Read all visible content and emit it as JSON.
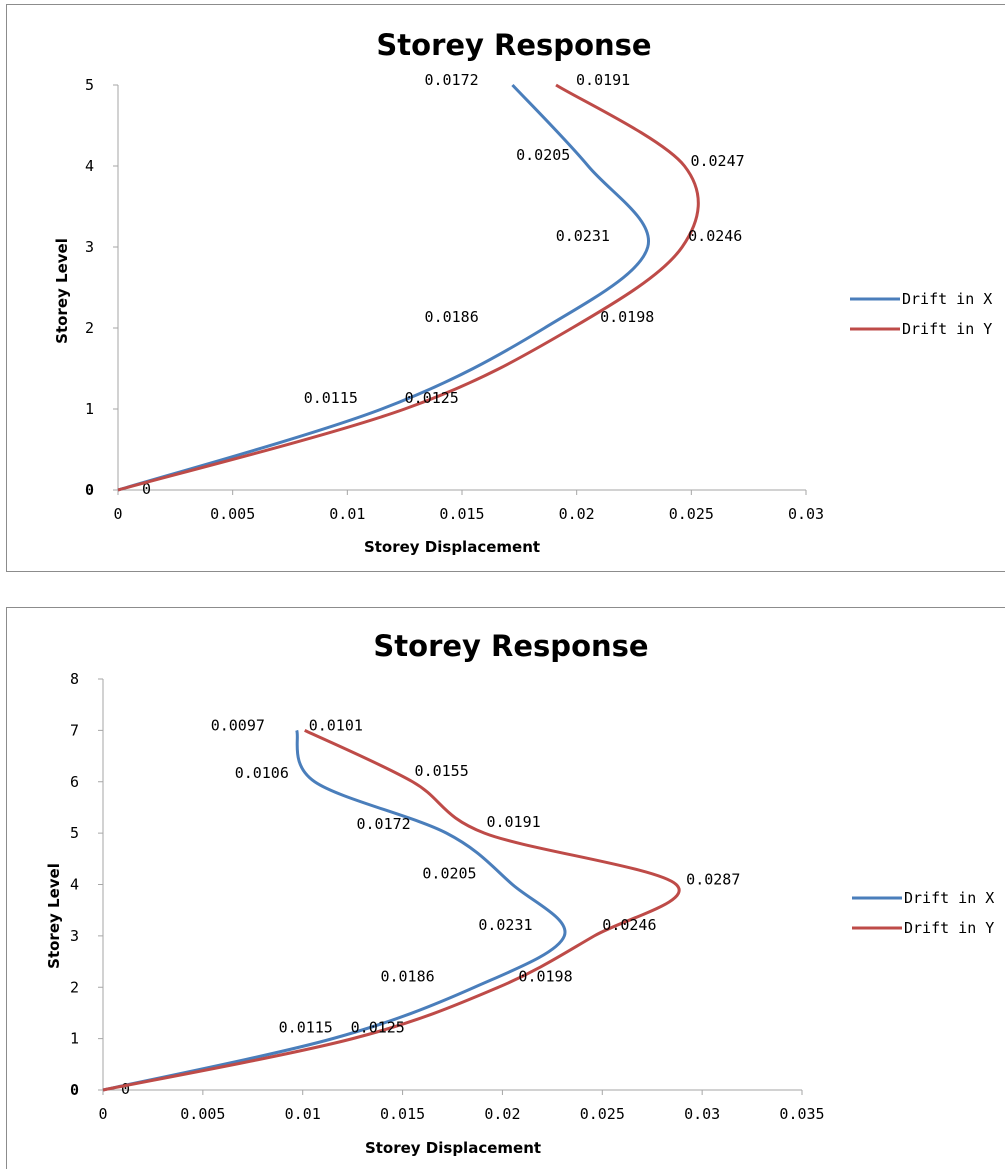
{
  "chart_data": [
    {
      "type": "line",
      "title": "Storey Response",
      "xlabel": "Storey Displacement",
      "ylabel": "Storey Level",
      "xlim": [
        0,
        0.03
      ],
      "ylim": [
        0,
        5
      ],
      "x_ticks": [
        "0",
        "0.005",
        "0.01",
        "0.015",
        "0.02",
        "0.025",
        "0.03"
      ],
      "y_ticks": [
        "0",
        "1",
        "2",
        "3",
        "4",
        "5"
      ],
      "grid": false,
      "legend_position": "right",
      "series": [
        {
          "name": "Drift in X",
          "color": "#4a7ebb",
          "points": [
            [
              0,
              0
            ],
            [
              0.0115,
              1
            ],
            [
              0.0186,
              2
            ],
            [
              0.0231,
              3
            ],
            [
              0.0205,
              4
            ],
            [
              0.0172,
              5
            ]
          ],
          "labels": [
            "0",
            "0.0115",
            "0.0186",
            "0.0231",
            "0.0205",
            "0.0172"
          ]
        },
        {
          "name": "Drift in Y",
          "color": "#be4b48",
          "points": [
            [
              0,
              0
            ],
            [
              0.0125,
              1
            ],
            [
              0.0198,
              2
            ],
            [
              0.0246,
              3
            ],
            [
              0.0247,
              4
            ],
            [
              0.0191,
              5
            ]
          ],
          "labels": [
            "",
            "0.0125",
            "0.0198",
            "0.0246",
            "0.0247",
            "0.0191"
          ]
        }
      ]
    },
    {
      "type": "line",
      "title": "Storey Response",
      "xlabel": "Storey Displacement",
      "ylabel": "Storey Level",
      "xlim": [
        0,
        0.035
      ],
      "ylim": [
        0,
        8
      ],
      "x_ticks": [
        "0",
        "0.005",
        "0.01",
        "0.015",
        "0.02",
        "0.025",
        "0.03",
        "0.035"
      ],
      "y_ticks": [
        "0",
        "1",
        "2",
        "3",
        "4",
        "5",
        "6",
        "7",
        "8"
      ],
      "grid": false,
      "legend_position": "right",
      "series": [
        {
          "name": "Drift in X",
          "color": "#4a7ebb",
          "points": [
            [
              0,
              0
            ],
            [
              0.0115,
              1
            ],
            [
              0.0186,
              2
            ],
            [
              0.0231,
              3
            ],
            [
              0.0205,
              4
            ],
            [
              0.0172,
              5
            ],
            [
              0.0106,
              6
            ],
            [
              0.0097,
              7
            ]
          ],
          "labels": [
            "0",
            "0.0115",
            "0.0186",
            "0.0231",
            "0.0205",
            "0.0172",
            "0.0106",
            "0.0097"
          ]
        },
        {
          "name": "Drift in Y",
          "color": "#be4b48",
          "points": [
            [
              0,
              0
            ],
            [
              0.0125,
              1
            ],
            [
              0.0198,
              2
            ],
            [
              0.0246,
              3
            ],
            [
              0.0287,
              4
            ],
            [
              0.0191,
              5
            ],
            [
              0.0155,
              6
            ],
            [
              0.0101,
              7
            ]
          ],
          "labels": [
            "",
            "0.0125",
            "0.0198",
            "0.0246",
            "0.0287",
            "0.0191",
            "0.0155",
            "0.0101"
          ]
        }
      ]
    }
  ]
}
